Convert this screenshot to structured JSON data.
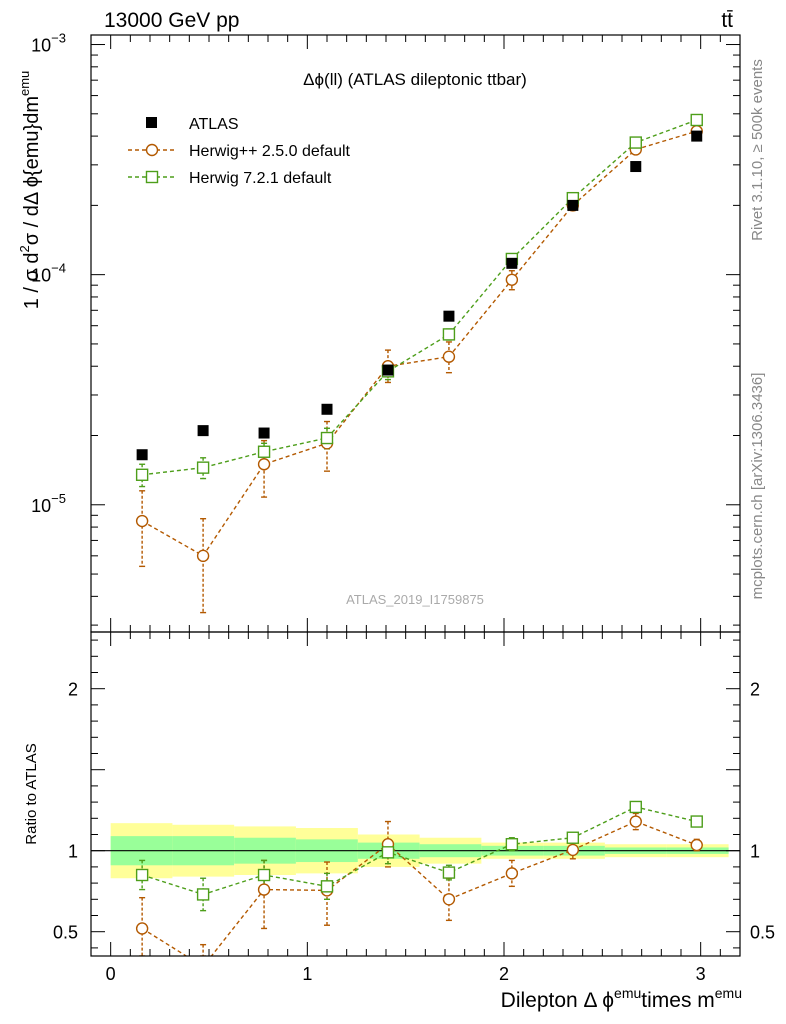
{
  "header": {
    "left_label": "13000 GeV pp",
    "right_label": "tt̄"
  },
  "side_labels": {
    "rivet": "Rivet 3.1.10, ≥ 500k events",
    "mcplots": "mcplots.cern.ch [arXiv:1306.3436]"
  },
  "chart_data": [
    {
      "type": "scatter",
      "panel": "main",
      "title": "Δϕ(ll) (ATLAS dileptonic ttbar)",
      "ylabel_parts": [
        "1 / σ  d",
        "2",
        "σ / dΔ ϕ{emu}dm",
        "emu"
      ],
      "watermark": "ATLAS_2019_I1759875",
      "yscale": "log",
      "ylim": [
        2.8e-06,
        0.0011
      ],
      "xlim": [
        -0.1,
        3.2
      ],
      "y_tick_labels": [
        {
          "value": 1e-05,
          "base": "10",
          "exp": "−5"
        },
        {
          "value": 0.0001,
          "base": "10",
          "exp": "−4"
        },
        {
          "value": 0.001,
          "base": "10",
          "exp": "−3"
        }
      ],
      "x": [
        0.16,
        0.47,
        0.78,
        1.1,
        1.41,
        1.72,
        2.04,
        2.35,
        2.67,
        2.98
      ],
      "series": [
        {
          "name": "ATLAS",
          "color": "#000000",
          "marker": "filled-square",
          "values": [
            1.65e-05,
            2.1e-05,
            2.05e-05,
            2.6e-05,
            3.85e-05,
            6.6e-05,
            0.000112,
            0.0002,
            0.000295,
            0.0004
          ]
        },
        {
          "name": "Herwig++ 2.5.0 default",
          "color": "#b35900",
          "marker": "open-circle",
          "values": [
            8.5e-06,
            6e-06,
            1.5e-05,
            1.85e-05,
            4e-05,
            4.4e-05,
            9.5e-05,
            0.0002,
            0.00035,
            0.00042
          ],
          "err_low": [
            5.4e-06,
            3.4e-06,
            1.08e-05,
            1.4e-05,
            3.4e-05,
            3.75e-05,
            8.6e-05,
            0.00019,
            0.000335,
            0.000405
          ],
          "err_high": [
            1.15e-05,
            8.7e-06,
            1.9e-05,
            2.3e-05,
            4.7e-05,
            5.1e-05,
            0.000104,
            0.00021,
            0.000365,
            0.000435
          ]
        },
        {
          "name": "Herwig 7.2.1 default",
          "color": "#4d9e1a",
          "marker": "open-square",
          "values": [
            1.35e-05,
            1.45e-05,
            1.7e-05,
            1.95e-05,
            3.8e-05,
            5.5e-05,
            0.000117,
            0.000215,
            0.000375,
            0.00047
          ],
          "err_low": [
            1.2e-05,
            1.3e-05,
            1.55e-05,
            1.75e-05,
            3.5e-05,
            5.2e-05,
            0.000112,
            0.00021,
            0.000365,
            0.00046
          ],
          "err_high": [
            1.5e-05,
            1.6e-05,
            1.85e-05,
            2.15e-05,
            4.1e-05,
            5.8e-05,
            0.000122,
            0.00022,
            0.000385,
            0.00048
          ]
        }
      ]
    },
    {
      "type": "scatter",
      "panel": "ratio",
      "ylabel": "Ratio to ATLAS",
      "xlabel_parts": [
        "Dilepton Δ ϕ",
        "emu",
        "times m",
        "emu"
      ],
      "ylim": [
        0.35,
        2.35
      ],
      "xlim": [
        -0.1,
        3.2
      ],
      "y_tick_labels": [
        "0.5",
        "1",
        "2"
      ],
      "y_tick_values": [
        0.5,
        1,
        2
      ],
      "x_tick_labels": [
        "0",
        "1",
        "2",
        "3"
      ],
      "x_tick_values": [
        0,
        1,
        2,
        3
      ],
      "bins": [
        0.0,
        0.314,
        0.628,
        0.942,
        1.257,
        1.571,
        1.885,
        2.199,
        2.513,
        2.827,
        3.142
      ],
      "band_yellow_low": [
        0.83,
        0.84,
        0.85,
        0.86,
        0.9,
        0.92,
        0.95,
        0.95,
        0.96,
        0.96
      ],
      "band_yellow_high": [
        1.17,
        1.16,
        1.15,
        1.14,
        1.1,
        1.08,
        1.05,
        1.05,
        1.04,
        1.04
      ],
      "band_green_low": [
        0.91,
        0.91,
        0.92,
        0.93,
        0.95,
        0.96,
        0.97,
        0.97,
        0.98,
        0.98
      ],
      "band_green_high": [
        1.09,
        1.09,
        1.08,
        1.07,
        1.05,
        1.04,
        1.03,
        1.03,
        1.02,
        1.02
      ],
      "x": [
        0.16,
        0.47,
        0.78,
        1.1,
        1.41,
        1.72,
        2.04,
        2.35,
        2.67,
        2.98
      ],
      "series": [
        {
          "name": "Herwig++ 2.5.0 default",
          "color": "#b35900",
          "marker": "open-circle",
          "values": [
            0.52,
            0.285,
            0.76,
            0.755,
            1.04,
            0.7,
            0.86,
            1.005,
            1.18,
            1.035
          ],
          "err_low": [
            0.33,
            0.16,
            0.52,
            0.54,
            0.9,
            0.57,
            0.78,
            0.95,
            1.13,
            1.0
          ],
          "err_high": [
            0.71,
            0.42,
            0.94,
            0.93,
            1.18,
            0.83,
            0.94,
            1.06,
            1.23,
            1.07
          ]
        },
        {
          "name": "Herwig 7.2.1 default",
          "color": "#4d9e1a",
          "marker": "open-square",
          "values": [
            0.85,
            0.73,
            0.85,
            0.78,
            0.99,
            0.865,
            1.04,
            1.08,
            1.27,
            1.18
          ],
          "err_low": [
            0.76,
            0.63,
            0.76,
            0.7,
            0.92,
            0.82,
            1.0,
            1.05,
            1.24,
            1.15
          ],
          "err_high": [
            0.94,
            0.83,
            0.94,
            0.86,
            1.06,
            0.91,
            1.08,
            1.11,
            1.3,
            1.21
          ]
        }
      ]
    }
  ]
}
